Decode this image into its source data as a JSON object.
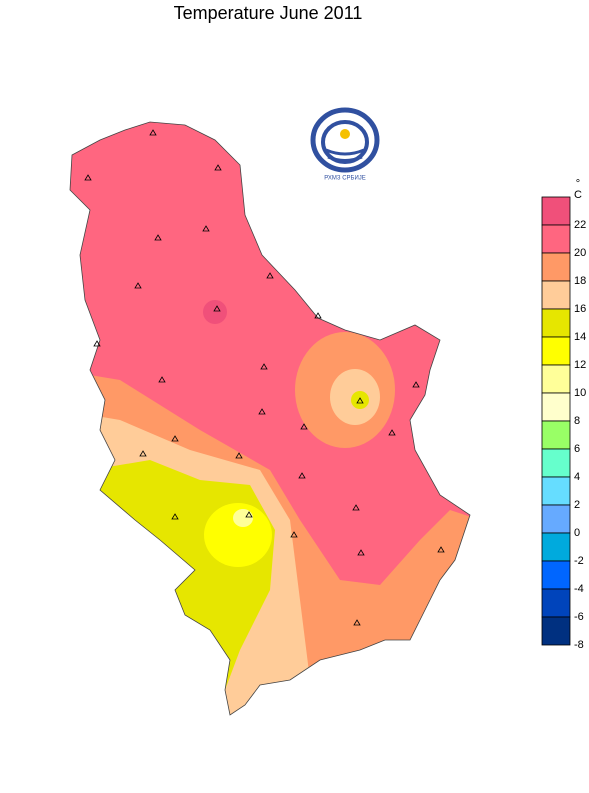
{
  "title": "Temperature  June  2011",
  "logo_text": "РХМЗ СРБИЈЕ",
  "legend": {
    "unit_symbol": "°",
    "unit_letter": "C",
    "ticks": [
      22,
      20,
      18,
      16,
      14,
      12,
      10,
      8,
      6,
      4,
      2,
      0,
      -2,
      -4,
      -6,
      -8
    ],
    "colors": [
      "#f0507a",
      "#ff6680",
      "#ff9966",
      "#ffcc99",
      "#e6e600",
      "#ffff00",
      "#ffff99",
      "#ffffcc",
      "#99ff66",
      "#66ffcc",
      "#66ddff",
      "#66aaff",
      "#00aadd",
      "#0066ff",
      "#0044bb",
      "#003080"
    ]
  }
}
